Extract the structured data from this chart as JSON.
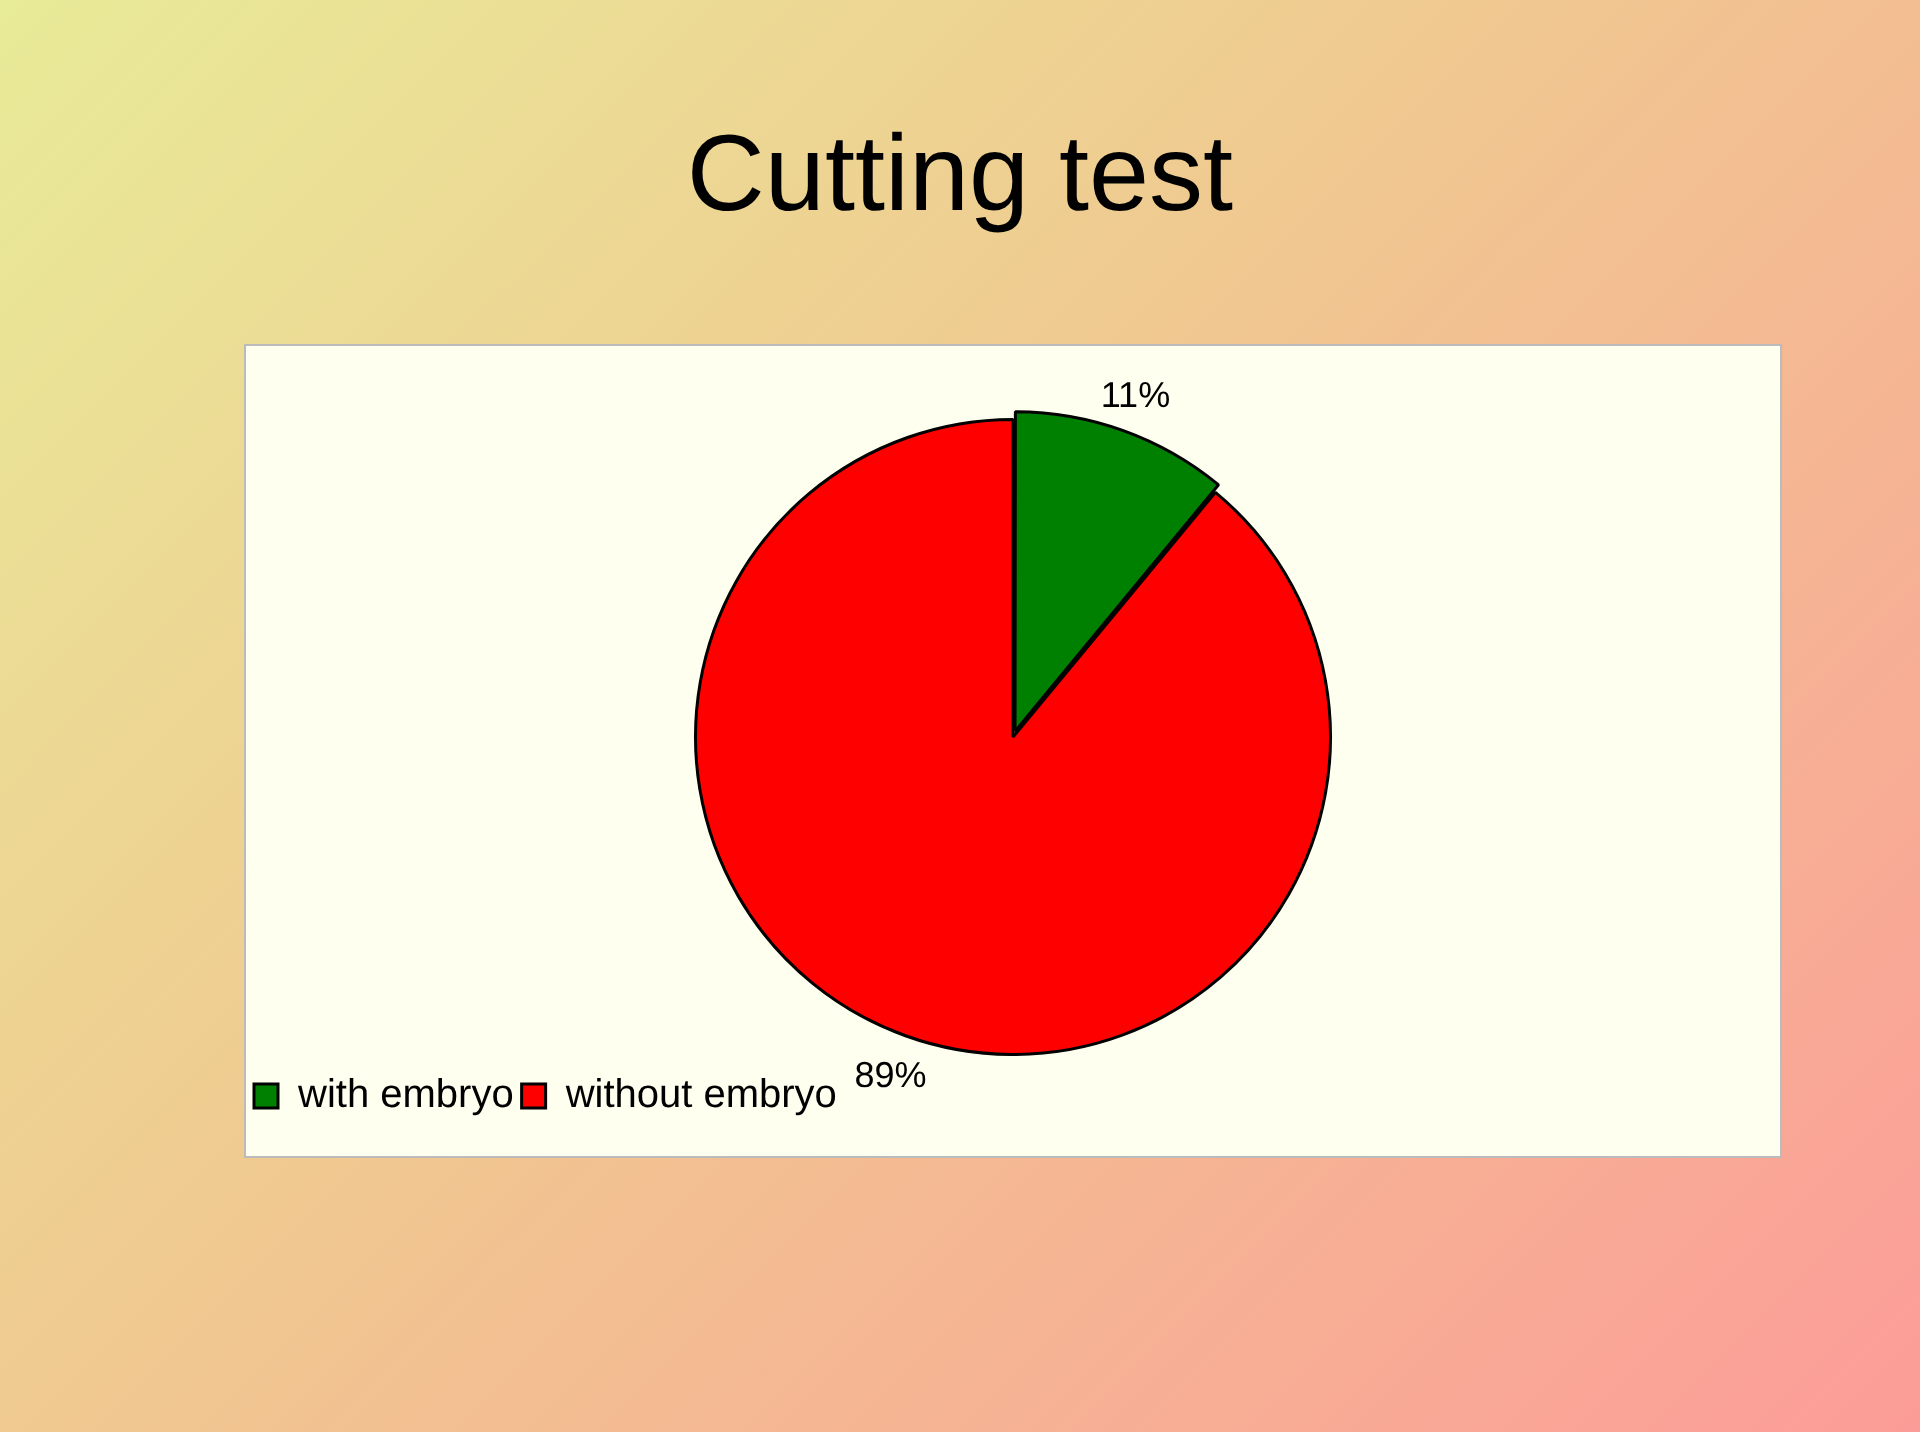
{
  "chart_data": {
    "type": "pie",
    "title": "Cutting test",
    "categories": [
      "with embryo",
      "without embryo"
    ],
    "values": [
      11,
      89
    ],
    "colors": [
      "#008000",
      "#ff0000"
    ],
    "value_labels": [
      "11%",
      "89%"
    ],
    "legend": "bottom left"
  }
}
